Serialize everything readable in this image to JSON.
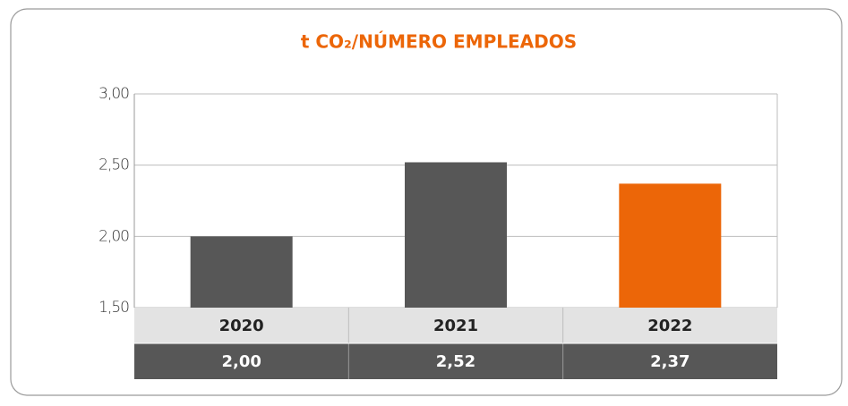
{
  "chart_data": {
    "type": "bar",
    "title": "t CO₂/NÚMERO EMPLEADOS",
    "categories": [
      "2020",
      "2021",
      "2022"
    ],
    "values": [
      2.0,
      2.52,
      2.37
    ],
    "value_labels": [
      "2,00",
      "2,52",
      "2,37"
    ],
    "colors": [
      "#575757",
      "#575757",
      "#ec6608"
    ],
    "ylim": [
      1.5,
      3
    ],
    "yticks": [
      {
        "value": 1.5,
        "label": "1,50"
      },
      {
        "value": 2,
        "label": "2,00"
      },
      {
        "value": 2.5,
        "label": "2,50"
      },
      {
        "value": 3,
        "label": "3,00"
      }
    ],
    "grid": true
  }
}
